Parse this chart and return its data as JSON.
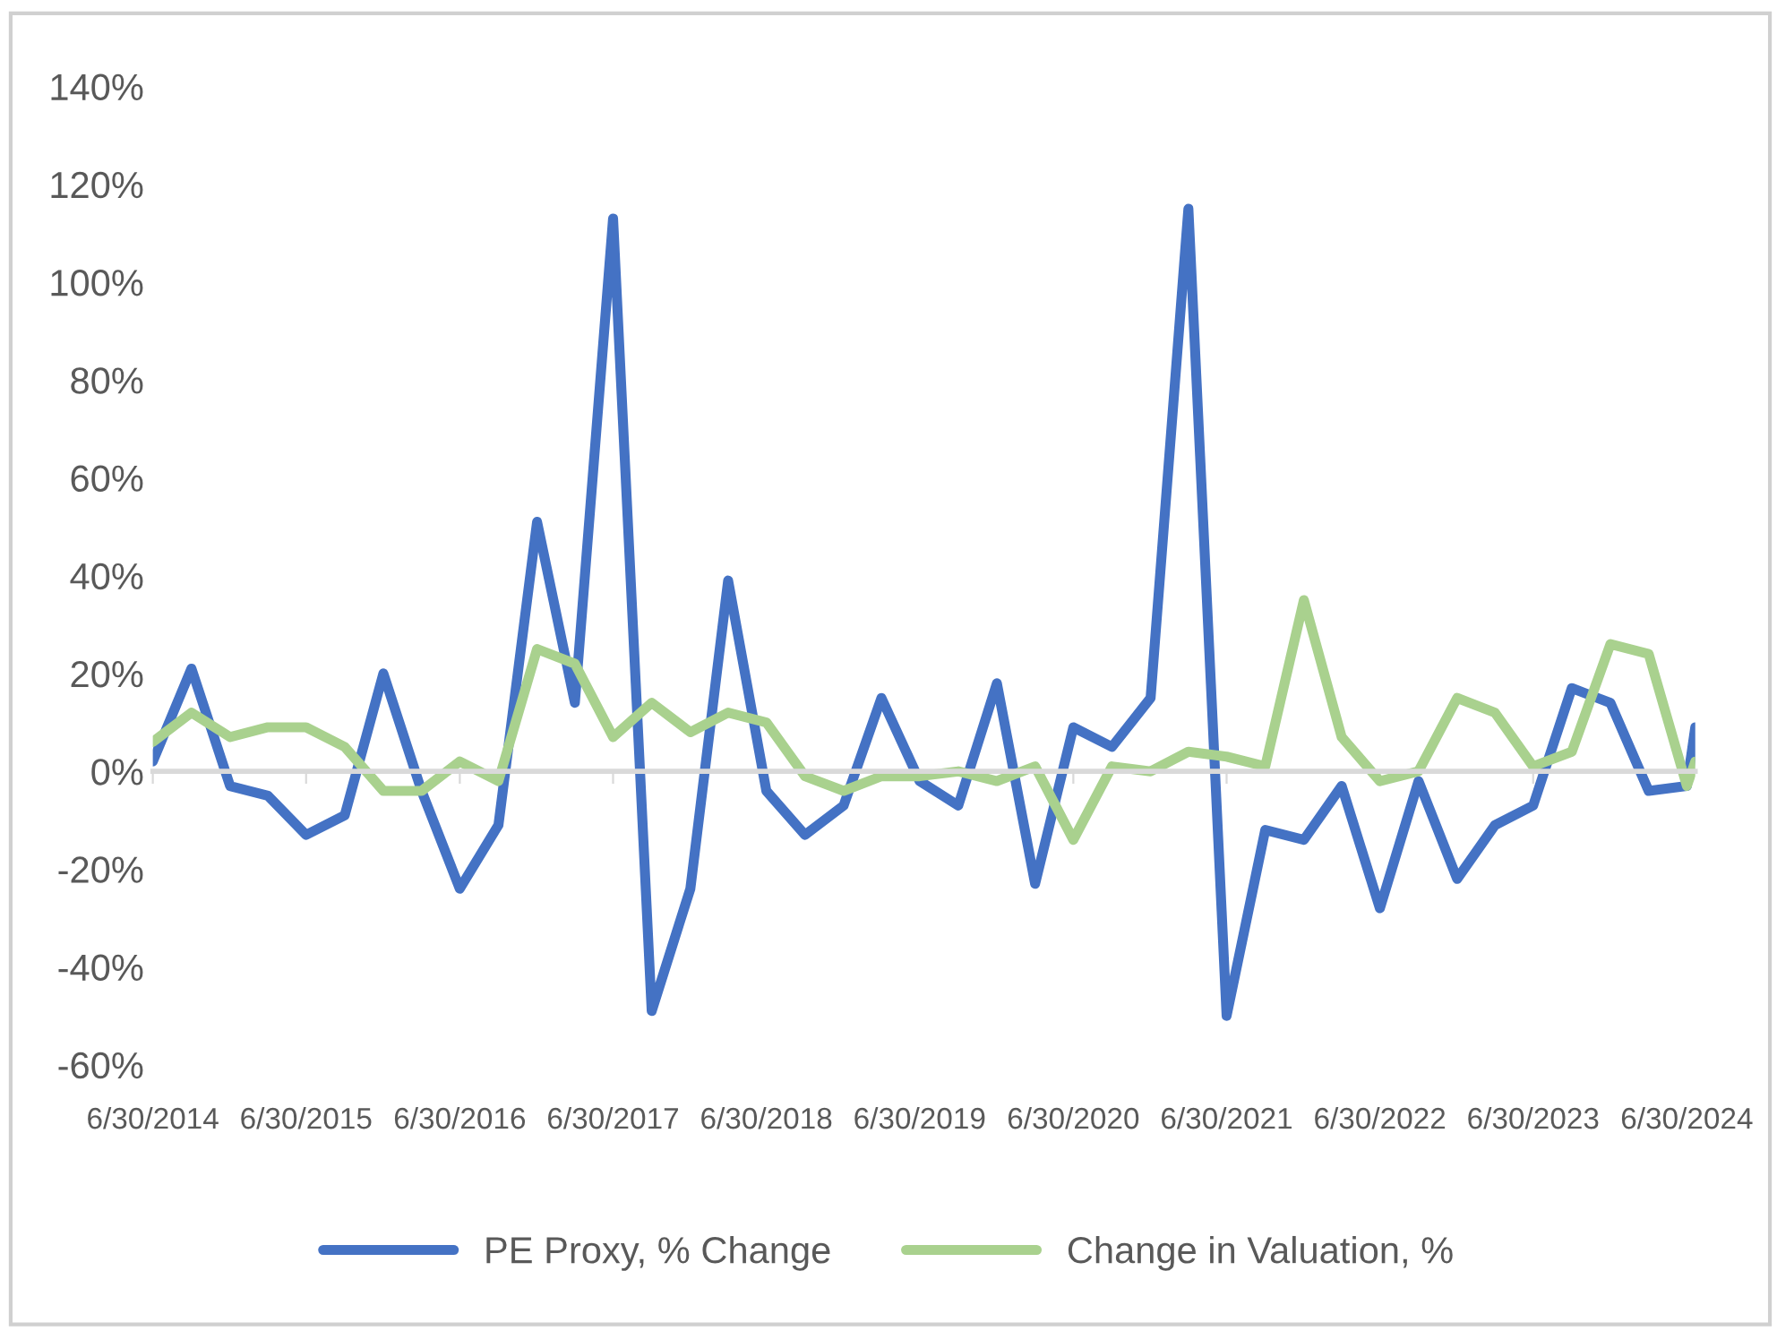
{
  "chart_data": {
    "type": "line",
    "x": [
      "2014-06-30",
      "2014-09-30",
      "2014-12-31",
      "2015-03-31",
      "2015-06-30",
      "2015-09-30",
      "2015-12-31",
      "2016-03-31",
      "2016-06-30",
      "2016-09-30",
      "2016-12-31",
      "2017-03-31",
      "2017-06-30",
      "2017-09-30",
      "2017-12-31",
      "2018-03-31",
      "2018-06-30",
      "2018-09-30",
      "2018-12-31",
      "2019-03-31",
      "2019-06-30",
      "2019-09-30",
      "2019-12-31",
      "2020-03-31",
      "2020-06-30",
      "2020-09-30",
      "2020-12-31",
      "2021-03-31",
      "2021-06-30",
      "2021-09-30",
      "2021-12-31",
      "2022-03-31",
      "2022-06-30",
      "2022-09-30",
      "2022-12-31",
      "2023-03-31",
      "2023-06-30",
      "2023-09-30",
      "2023-12-31",
      "2024-03-31",
      "2024-06-30",
      "2024-07-20"
    ],
    "series": [
      {
        "name": "PE Proxy, % Change",
        "color": "#4472c4",
        "values": [
          2,
          21,
          -3,
          -5,
          -13,
          -9,
          20,
          -4,
          -24,
          -11,
          51,
          14,
          113,
          -49,
          -24,
          39,
          -4,
          -13,
          -7,
          15,
          -2,
          -7,
          18,
          -23,
          9,
          5,
          15,
          115,
          -50,
          -12,
          -14,
          -3,
          -28,
          -2,
          -22,
          -11,
          -7,
          17,
          14,
          -4,
          -3,
          9
        ]
      },
      {
        "name": "Change in Valuation, %",
        "color": "#a9d18e",
        "values": [
          6,
          12,
          7,
          9,
          9,
          5,
          -4,
          -4,
          2,
          -2,
          25,
          22,
          7,
          14,
          8,
          12,
          10,
          -1,
          -4,
          -1,
          -1,
          0,
          -2,
          1,
          -14,
          1,
          0,
          4,
          3,
          1,
          35,
          7,
          -2,
          0,
          15,
          12,
          1,
          4,
          26,
          24,
          -3,
          2
        ]
      }
    ],
    "xlim": [
      "2014-06-30",
      "2024-07-20"
    ],
    "xticks": [
      {
        "value": "2014-06-30",
        "label": "6/30/2014"
      },
      {
        "value": "2015-06-30",
        "label": "6/30/2015"
      },
      {
        "value": "2016-06-30",
        "label": "6/30/2016"
      },
      {
        "value": "2017-06-30",
        "label": "6/30/2017"
      },
      {
        "value": "2018-06-30",
        "label": "6/30/2018"
      },
      {
        "value": "2019-06-30",
        "label": "6/30/2019"
      },
      {
        "value": "2020-06-30",
        "label": "6/30/2020"
      },
      {
        "value": "2021-06-30",
        "label": "6/30/2021"
      },
      {
        "value": "2022-06-30",
        "label": "6/30/2022"
      },
      {
        "value": "2023-06-30",
        "label": "6/30/2023"
      },
      {
        "value": "2024-06-30",
        "label": "6/30/2024"
      }
    ],
    "ylim": [
      -60,
      140
    ],
    "yticks": [
      {
        "value": -60,
        "label": "-60%"
      },
      {
        "value": -40,
        "label": "-40%"
      },
      {
        "value": -20,
        "label": "-20%"
      },
      {
        "value": 0,
        "label": "0%"
      },
      {
        "value": 20,
        "label": "20%"
      },
      {
        "value": 40,
        "label": "40%"
      },
      {
        "value": 60,
        "label": "60%"
      },
      {
        "value": 80,
        "label": "80%"
      },
      {
        "value": 100,
        "label": "100%"
      },
      {
        "value": 120,
        "label": "120%"
      },
      {
        "value": 140,
        "label": "140%"
      }
    ],
    "legend": "bottom",
    "line_style": "solid"
  }
}
